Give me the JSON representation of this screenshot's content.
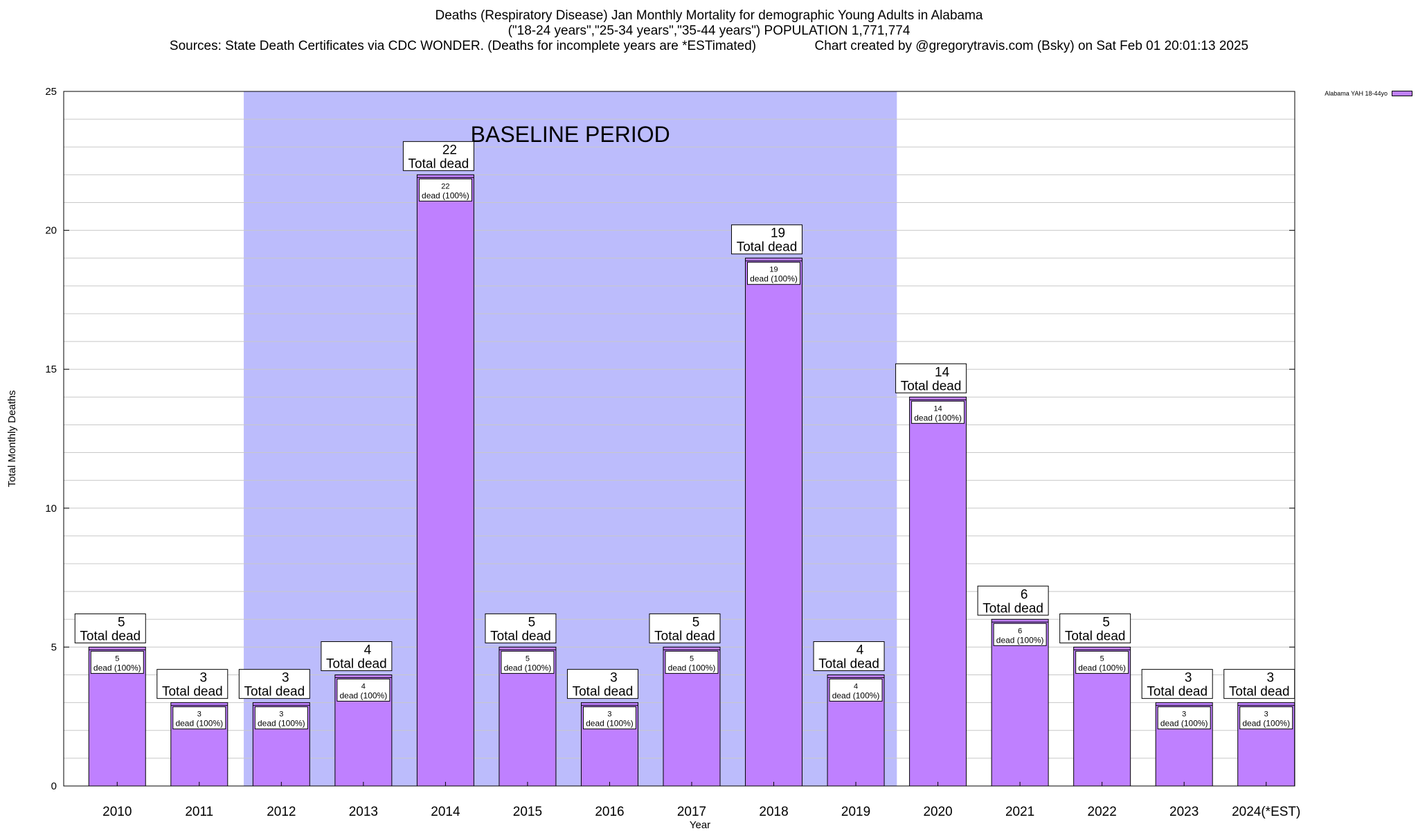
{
  "title_lines": [
    "Deaths (Respiratory Disease) Jan Monthly Mortality for demographic Young Adults in Alabama",
    "(\"18-24 years\",\"25-34 years\",\"35-44 years\") POPULATION 1,771,774",
    "Sources: State Death Certificates via CDC WONDER. (Deaths for incomplete years are *ESTimated)                Chart created by @gregorytravis.com (Bsky) on Sat Feb 01 20:01:13 2025"
  ],
  "legend": {
    "label": "Alabama YAH 18-44yo"
  },
  "colors": {
    "bar": "#bf80ff",
    "baseline": "#bcbcfc",
    "grid": "#c8c8c8"
  },
  "chart_data": {
    "type": "bar",
    "xlabel": "Year",
    "ylabel": "Total Monthly Deaths",
    "ylim": [
      0,
      25
    ],
    "yticks": [
      0,
      5,
      10,
      15,
      20,
      25
    ],
    "grid": true,
    "legend_position": "top-right",
    "categories": [
      "2010",
      "2011",
      "2012",
      "2013",
      "2014",
      "2015",
      "2016",
      "2017",
      "2018",
      "2019",
      "2020",
      "2021",
      "2022",
      "2023",
      "2024(*EST)"
    ],
    "series": [
      {
        "name": "Alabama YAH 18-44yo",
        "values": [
          5,
          3,
          3,
          4,
          22,
          5,
          3,
          5,
          19,
          4,
          14,
          6,
          5,
          3,
          3
        ]
      }
    ],
    "top_label_suffix": "Total dead",
    "inner_label_suffix": "dead (100%)",
    "baseline": {
      "label": "BASELINE PERIOD",
      "from": "2012",
      "to": "2019"
    }
  }
}
